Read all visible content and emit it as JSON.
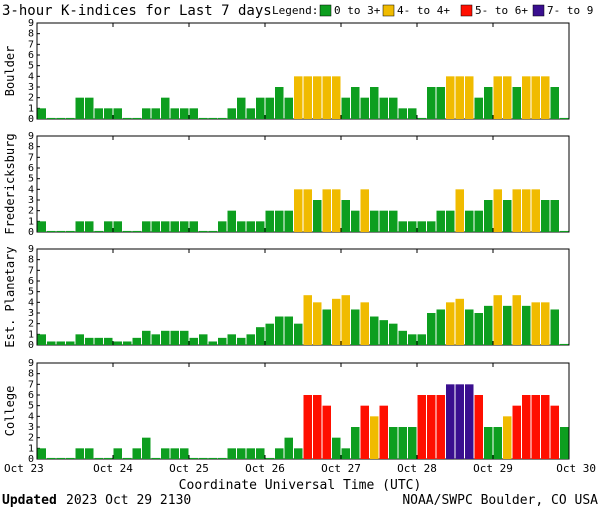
{
  "header": {
    "title": "3-hour K-indices for Last 7 days",
    "legend_label": "Legend:"
  },
  "legend": [
    {
      "label": "0 to 3+",
      "color": "#0d9e1f"
    },
    {
      "label": "4- to 4+",
      "color": "#f0bb00"
    },
    {
      "label": "5- to 6+",
      "color": "#ff0f00"
    },
    {
      "label": "7- to 9",
      "color": "#3a0f8f"
    }
  ],
  "footer": {
    "updated_label": "Updated",
    "updated_value": "2023 Oct 29 2130",
    "source": "NOAA/SWPC Boulder, CO USA"
  },
  "chart_data": {
    "type": "bar",
    "title": "3-hour K-indices for Last 7 days",
    "xlabel": "Coordinate Universal Time (UTC)",
    "x_ticks": [
      "Oct 23",
      "Oct 24",
      "Oct 25",
      "Oct 26",
      "Oct 27",
      "Oct 28",
      "Oct 29",
      "Oct 30"
    ],
    "y_ticks": [
      "0",
      "1",
      "2",
      "3",
      "4",
      "5",
      "6",
      "7",
      "8",
      "9"
    ],
    "ylim": [
      0,
      9
    ],
    "bars_per_day": 8,
    "color_bins": [
      {
        "min": 0,
        "max": 3.99,
        "color": "#0d9e1f"
      },
      {
        "min": 4,
        "max": 4.99,
        "color": "#f0bb00"
      },
      {
        "min": 5,
        "max": 6.99,
        "color": "#ff0f00"
      },
      {
        "min": 7,
        "max": 9,
        "color": "#3a0f8f"
      }
    ],
    "panels": [
      {
        "ylabel": "Boulder",
        "values": [
          1,
          0.1,
          0.1,
          0.1,
          2,
          2,
          1,
          1,
          1,
          0.1,
          0.1,
          1,
          1,
          2,
          1,
          1,
          1,
          0.1,
          0.1,
          0.1,
          1,
          2,
          1,
          2,
          2,
          3,
          2,
          4,
          4,
          4,
          4,
          4,
          2,
          3,
          2,
          3,
          2,
          2,
          1,
          1,
          0.1,
          3,
          3,
          4,
          4,
          4,
          2,
          3,
          4,
          4,
          3,
          4,
          4,
          4,
          3,
          0.1
        ]
      },
      {
        "ylabel": "Fredericksburg",
        "values": [
          1,
          0.1,
          0.1,
          0.1,
          1,
          1,
          0.1,
          1,
          1,
          0.1,
          0.1,
          1,
          1,
          1,
          1,
          1,
          1,
          0.1,
          0.1,
          1,
          2,
          1,
          1,
          1,
          2,
          2,
          2,
          4,
          4,
          3,
          4,
          4,
          3,
          2,
          4,
          2,
          2,
          2,
          1,
          1,
          1,
          1,
          2,
          2,
          4,
          2,
          2,
          3,
          4,
          3,
          4,
          4,
          4,
          3,
          3,
          0.1
        ]
      },
      {
        "ylabel": "Est. Planetary",
        "values": [
          1,
          0.33,
          0.33,
          0.33,
          1,
          0.67,
          0.67,
          0.67,
          0.33,
          0.33,
          0.67,
          1.33,
          1,
          1.33,
          1.33,
          1.33,
          0.67,
          1,
          0.33,
          0.67,
          1,
          0.67,
          1,
          1.67,
          2,
          2.67,
          2.67,
          2,
          4.67,
          4,
          3.33,
          4.33,
          4.67,
          3.33,
          4,
          2.67,
          2.33,
          2,
          1.33,
          1,
          1,
          3,
          3.33,
          4,
          4.33,
          3.33,
          3,
          3.67,
          4.67,
          3.67,
          4.67,
          3.67,
          4,
          4,
          3.33,
          0.1
        ]
      },
      {
        "ylabel": "College",
        "values": [
          1,
          0.1,
          0.1,
          0.1,
          1,
          1,
          0.1,
          0.1,
          1,
          0.1,
          1,
          2,
          0.1,
          1,
          1,
          1,
          0.1,
          0.1,
          0.1,
          0.1,
          1,
          1,
          1,
          1,
          0.1,
          1,
          2,
          1,
          6,
          6,
          5,
          2,
          1,
          3,
          5,
          4,
          5,
          3,
          3,
          3,
          6,
          6,
          6,
          7,
          7,
          7,
          6,
          3,
          3,
          4,
          5,
          6,
          6,
          6,
          5,
          3
        ]
      }
    ]
  }
}
